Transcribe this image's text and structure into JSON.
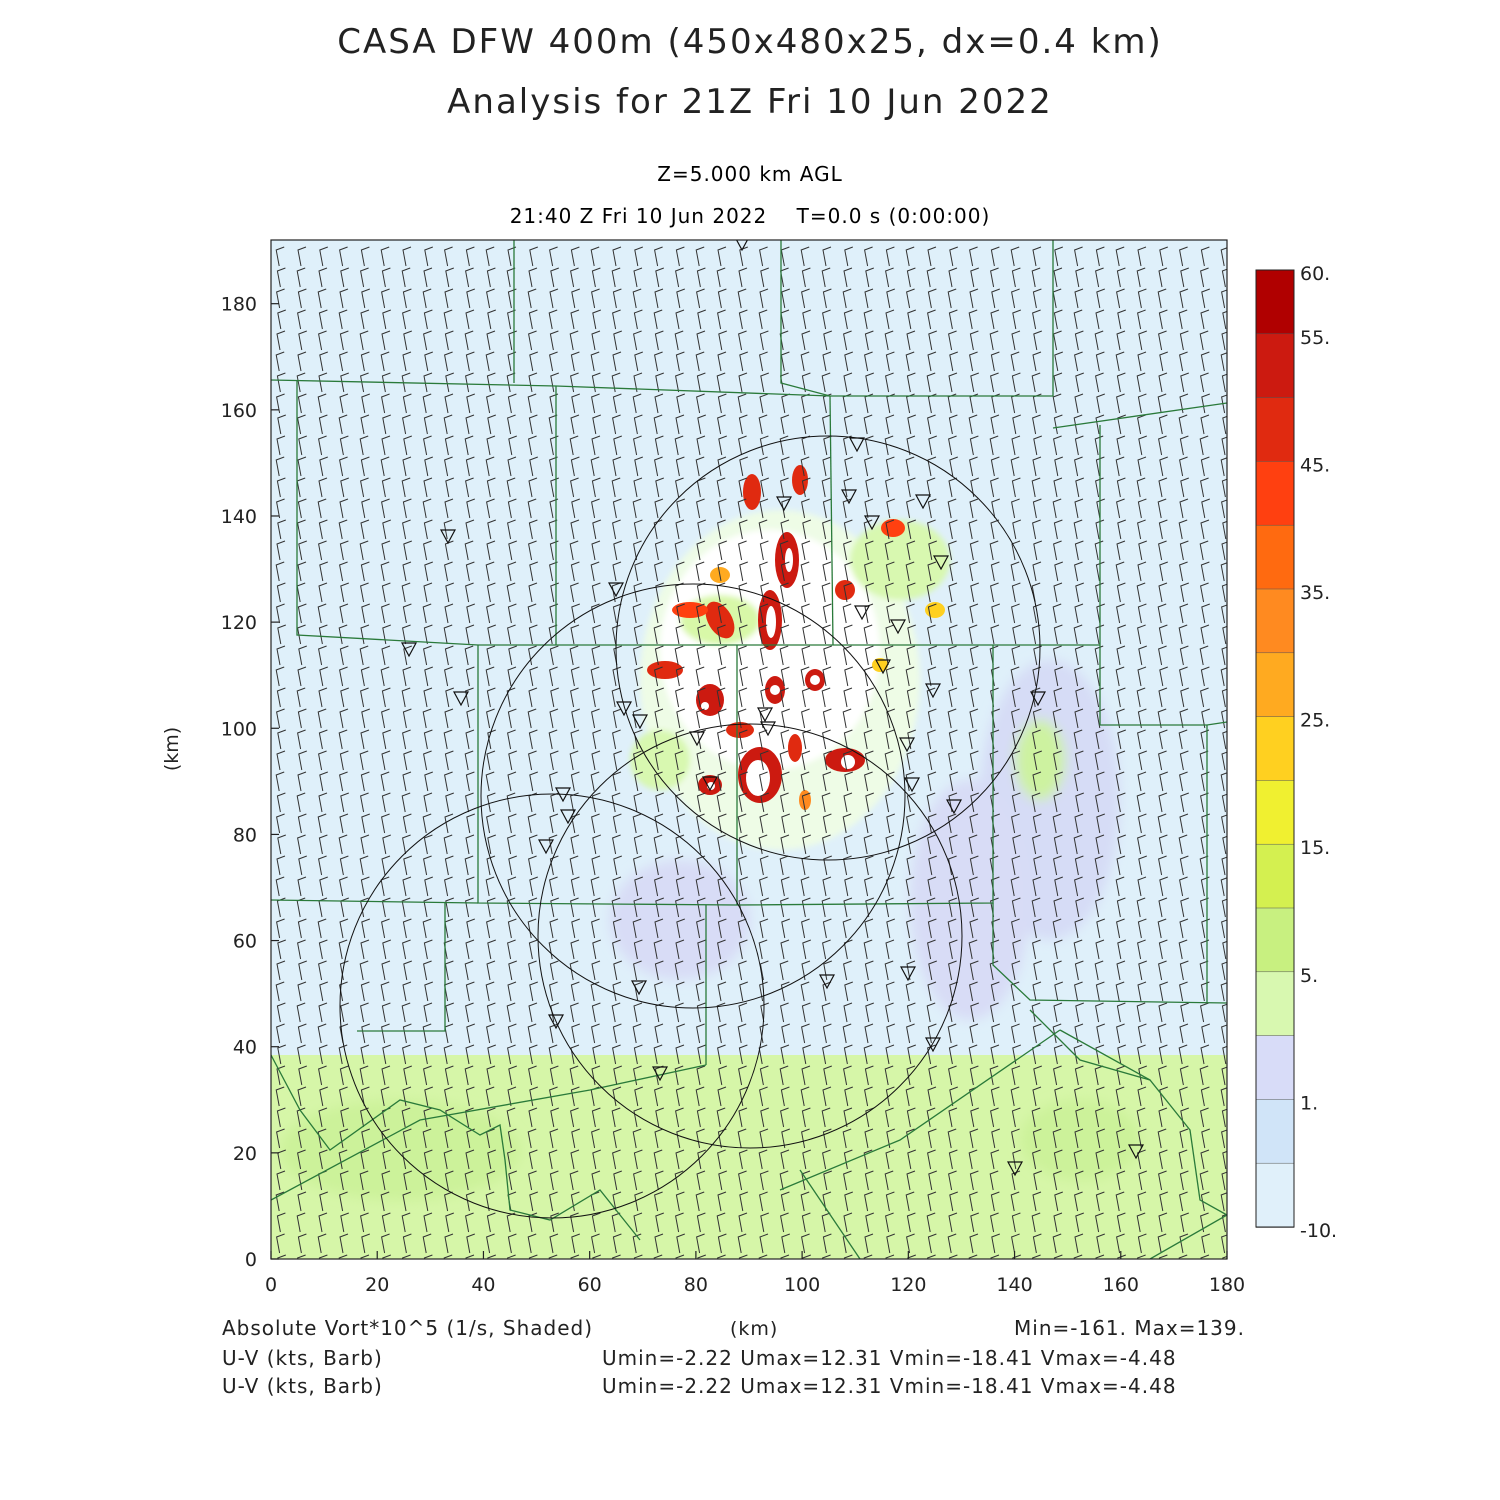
{
  "header": {
    "title_line1": "CASA DFW 400m (450x480x25, dx=0.4 km)",
    "title_line2": "Analysis for 21Z Fri 10 Jun 2022",
    "level": "Z=5.000 km AGL",
    "time": "21:40 Z Fri 10 Jun 2022    T=0.0 s (0:00:00)"
  },
  "axes": {
    "x_label": "(km)",
    "y_label": "(km)",
    "x_ticks": [
      "0",
      "20",
      "40",
      "60",
      "80",
      "100",
      "120",
      "140",
      "160",
      "180"
    ],
    "y_ticks": [
      "0",
      "20",
      "40",
      "60",
      "80",
      "100",
      "120",
      "140",
      "160",
      "180"
    ],
    "x_range": [
      0,
      180
    ],
    "y_range": [
      0,
      192
    ]
  },
  "colorbar": {
    "labels": [
      "60.",
      "55.",
      "45.",
      "35.",
      "25.",
      "15.",
      "5.",
      "1.",
      "-10."
    ],
    "colors": [
      "#b00000",
      "#cc1a10",
      "#e02a10",
      "#ff4010",
      "#ff6a10",
      "#ff8a20",
      "#ffaa20",
      "#ffd020",
      "#f0f030",
      "#d4f050",
      "#c8f080",
      "#d8f8b0",
      "#d8dcf8",
      "#d0e4f8",
      "#e0f0fa"
    ]
  },
  "footer": {
    "field_label": "Absolute Vort*10^5 (1/s, Shaded)",
    "units_label": "(km)",
    "minmax": "Min=-161. Max=139.",
    "barb1_label": "U-V (kts, Barb)",
    "barb1_stats": "Umin=-2.22 Umax=12.31 Vmin=-18.41 Vmax=-4.48",
    "barb2_label": "U-V (kts, Barb)",
    "barb2_stats": "Umin=-2.22 Umax=12.31 Vmin=-18.41 Vmax=-4.48"
  },
  "radar_coverage_centers_km": [
    [
      53,
      49
    ],
    [
      88,
      90
    ],
    [
      106,
      116
    ],
    [
      90,
      62
    ]
  ],
  "radar_coverage_radius_km": 40
}
